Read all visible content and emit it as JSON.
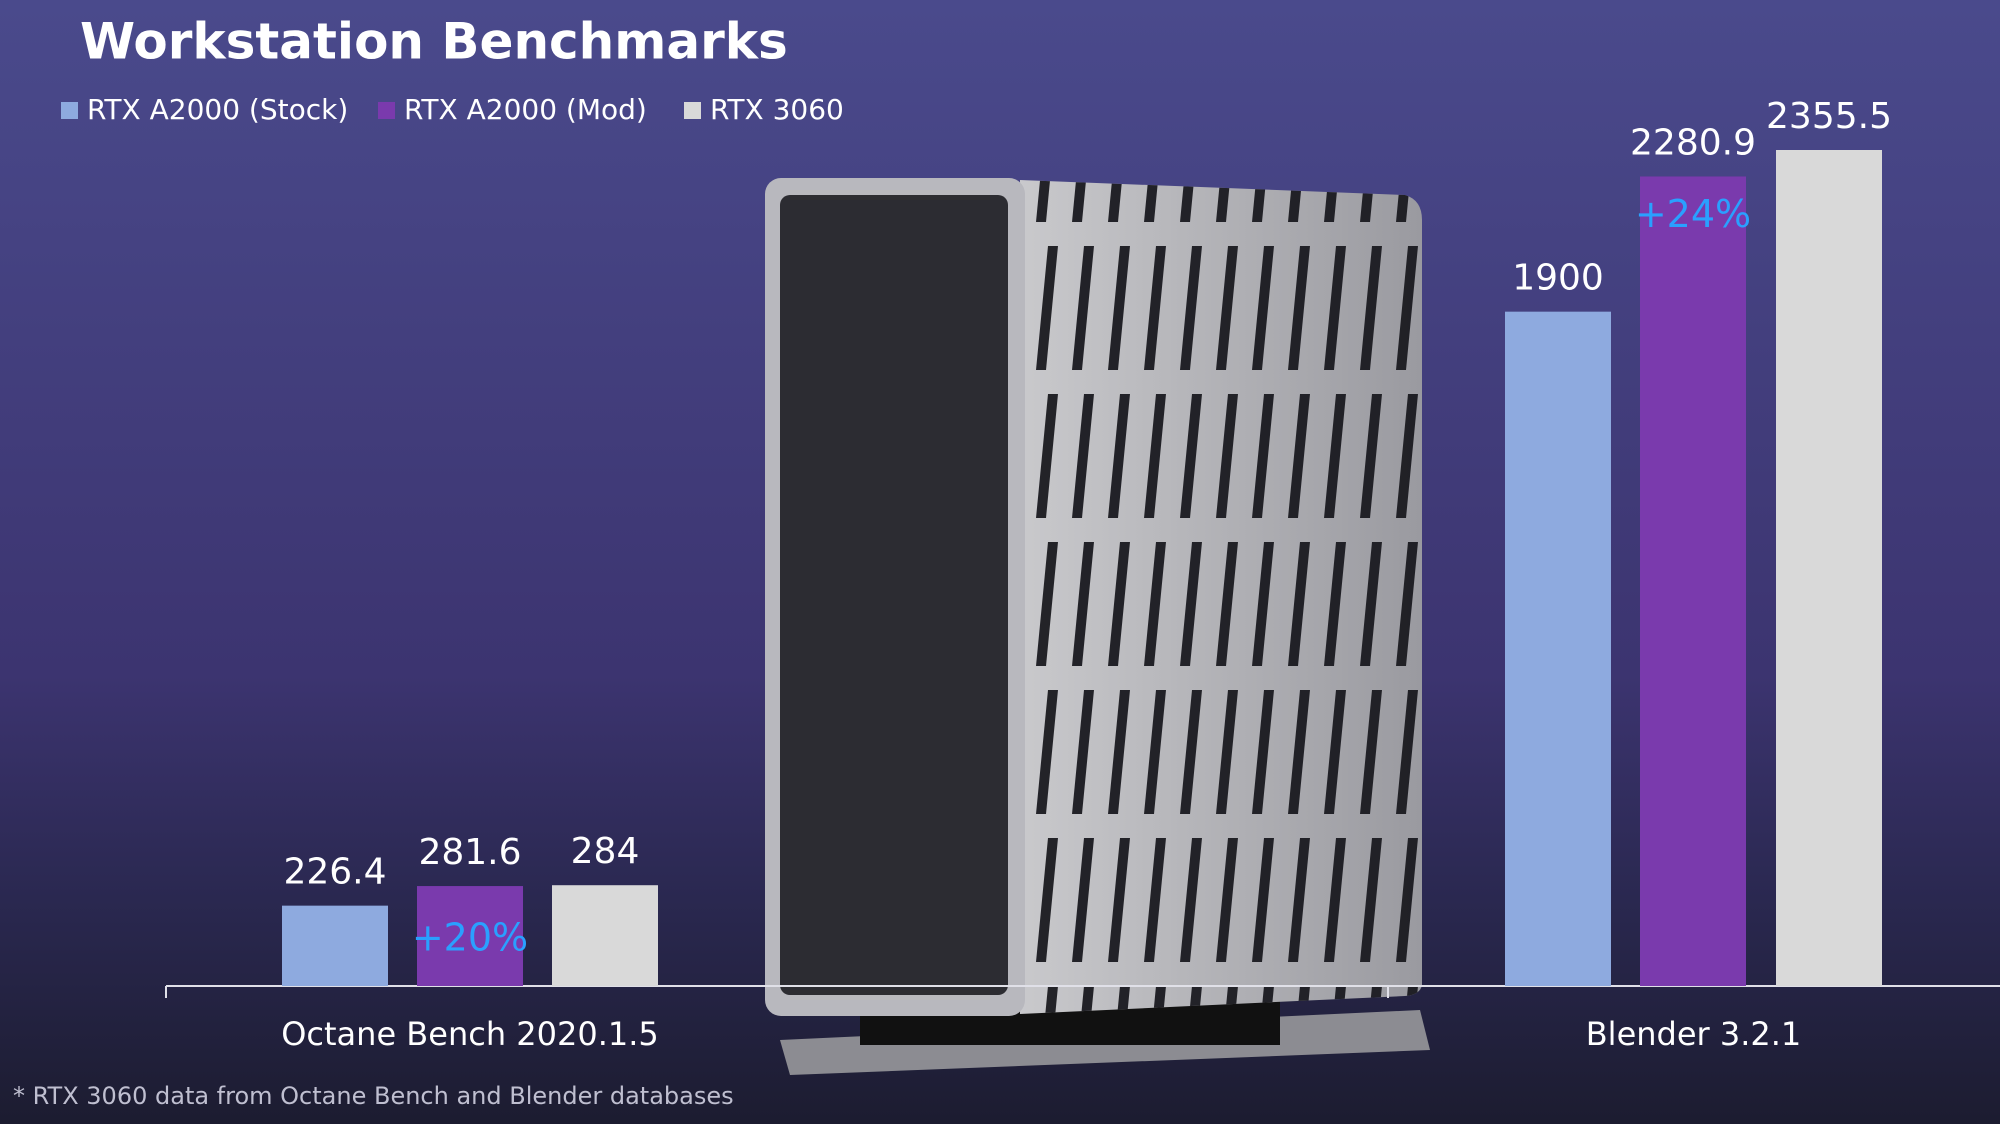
{
  "chart_data": {
    "type": "bar",
    "title": "Workstation Benchmarks",
    "categories": [
      "Octane Bench 2020.1.5",
      "Blender 3.2.1"
    ],
    "series": [
      {
        "name": "RTX A2000 (Stock)",
        "color": "#8eaadf",
        "values": [
          226.4,
          1900
        ]
      },
      {
        "name": "RTX A2000 (Mod)",
        "color": "#7a3aad",
        "values": [
          281.6,
          2280.9
        ]
      },
      {
        "name": "RTX 3060",
        "color": "#d9d9d9",
        "values": [
          284,
          2355.5
        ]
      }
    ],
    "annotations": [
      "+20%",
      "+24%"
    ],
    "footnote": "* RTX 3060 data from Octane Bench and Blender databases"
  }
}
